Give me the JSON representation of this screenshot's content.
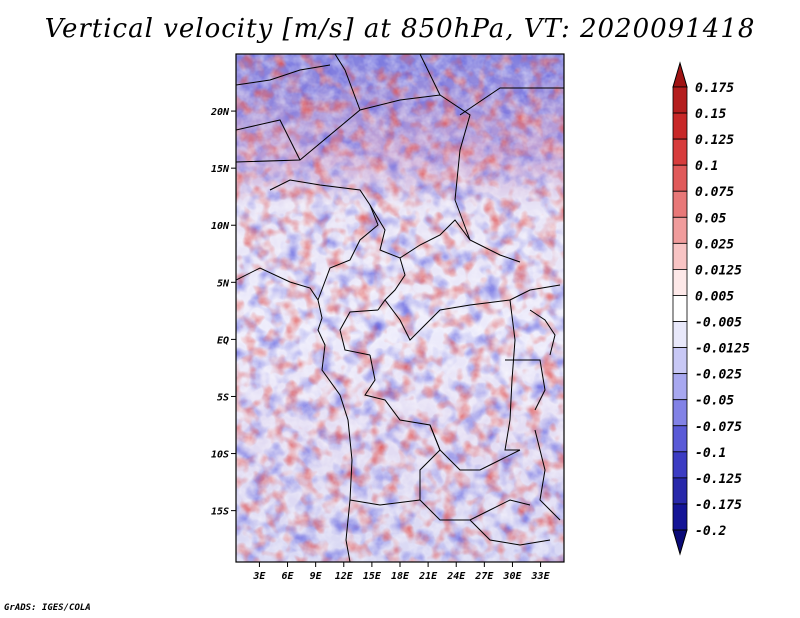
{
  "title": "Vertical velocity [m/s] at 850hPa, VT: 2020091418",
  "credit": "GrADS: IGES/COLA",
  "map": {
    "lat_labels": [
      "20N",
      "15N",
      "10N",
      "5N",
      "EQ",
      "5S",
      "10S",
      "15S"
    ],
    "lat_values": [
      20,
      15,
      10,
      5,
      0,
      -5,
      -10,
      -15
    ],
    "lon_labels": [
      "3E",
      "6E",
      "9E",
      "12E",
      "15E",
      "18E",
      "21E",
      "24E",
      "27E",
      "30E",
      "33E"
    ],
    "lon_values": [
      3,
      6,
      9,
      12,
      15,
      18,
      21,
      24,
      27,
      30,
      33
    ],
    "lon_range": [
      0.5,
      35.5
    ],
    "lat_range": [
      -19.5,
      25
    ]
  },
  "colorbar": {
    "labels": [
      "0.175",
      "0.15",
      "0.125",
      "0.1",
      "0.075",
      "0.05",
      "0.025",
      "0.0125",
      "0.005",
      "-0.005",
      "-0.0125",
      "-0.025",
      "-0.05",
      "-0.075",
      "-0.1",
      "-0.125",
      "-0.175",
      "-0.2"
    ],
    "colors": [
      "#a01414",
      "#b41e1e",
      "#c82828",
      "#d73c3c",
      "#e05a5a",
      "#e87878",
      "#f09c9c",
      "#f8c4c4",
      "#fde8e8",
      "#ffffff",
      "#e8e8fa",
      "#c8c8f5",
      "#a8a8f0",
      "#8282e6",
      "#5a5ad7",
      "#3c3cc3",
      "#2828aa",
      "#141496",
      "#0a0a78"
    ]
  }
}
